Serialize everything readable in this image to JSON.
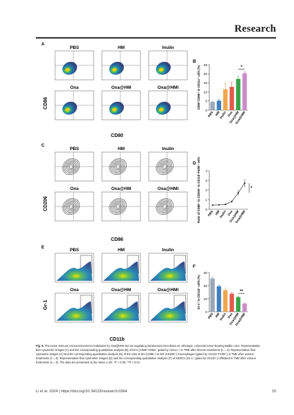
{
  "header": {
    "journal": "Research"
  },
  "figure": {
    "panel_letters": [
      "A",
      "B",
      "C",
      "D",
      "E",
      "F"
    ],
    "groups_top": [
      "PBS",
      "HM",
      "Inulin"
    ],
    "groups_bottom": [
      "Oxa",
      "Oxa@HM",
      "Oxa@HMI"
    ],
    "panelA": {
      "y_axis": "CD86",
      "x_axis": "CD80"
    },
    "panelC": {
      "y_axis": "CD206",
      "x_axis": "CD86"
    },
    "panelE": {
      "y_axis": "Gr-1",
      "x_axis": "CD11b"
    }
  },
  "chart_data": [
    {
      "panel": "B",
      "type": "bar",
      "categories": [
        "PBS",
        "HM",
        "Inulin",
        "Oxa",
        "Oxa@HM",
        "Oxa@HMI"
      ],
      "values": [
        4.5,
        5.2,
        11.5,
        12.8,
        17.2,
        20.3
      ],
      "errors": [
        0.5,
        0.6,
        3.2,
        2.5,
        1.3,
        0.8
      ],
      "colors": [
        "#9aa7b8",
        "#3d7fc1",
        "#f0a64a",
        "#e05a4c",
        "#3aa34a",
        "#c98cc9"
      ],
      "ylabel": "CD80⁺CD86⁺ in CD11c⁺ cells (%)",
      "ylim": [
        0,
        25
      ],
      "yticks": [
        "0",
        "5",
        "10",
        "15",
        "20",
        "25"
      ],
      "significance": "*"
    },
    {
      "panel": "D",
      "type": "line",
      "categories": [
        "PBS",
        "HM",
        "Inulin",
        "Oxa",
        "Oxa@HM",
        "Oxa@HMI"
      ],
      "values": [
        0.42,
        0.45,
        0.5,
        0.8,
        1.7,
        2.7
      ],
      "errors": [
        0.05,
        0.05,
        0.06,
        0.12,
        0.3,
        0.4
      ],
      "color": "#2a2a2a",
      "ylabel": "Ratio of CD86⁺ to CD206⁺ in CD11b⁺F4/80⁺ cells",
      "ylim": [
        0,
        4
      ],
      "yticks": [
        "0",
        "1",
        "2",
        "3",
        "4"
      ],
      "significance": "*"
    },
    {
      "panel": "F",
      "type": "bar",
      "categories": [
        "PBS",
        "HM",
        "Inulin",
        "Oxa",
        "Oxa@HM",
        "Oxa@HMI"
      ],
      "values": [
        25.5,
        19.5,
        16.5,
        13.8,
        11.2,
        6.3
      ],
      "errors": [
        1.2,
        1.0,
        1.5,
        1.0,
        0.8,
        0.6
      ],
      "colors": [
        "#9aa7b8",
        "#3d7fc1",
        "#f0a64a",
        "#e05a4c",
        "#3aa34a",
        "#c98cc9"
      ],
      "ylabel": "Gr-1⁺ in CD11b⁺ cells (%)",
      "ylim": [
        0,
        30
      ],
      "yticks": [
        "0",
        "10",
        "20",
        "30"
      ],
      "significance": "**"
    }
  ],
  "caption": {
    "label": "Fig. 9.",
    "text": "The tumor immune microenvironment modulation by Oxa@HMI Gel via regulating intratumoral microbiota on orthotopic colorectal tumor-bearing Balb/c mice. Representative flow cytometric images (A) and the corresponding quantitative analysis (B) of DCs (CD80⁺CD86⁺ gated by CD11c⁺) in TME after diverse treatments (n = 3). Representative flow cytometric images (C) and the corresponding quantitative analysis (D) of the ratio of M1 (CD86⁺) to M2 (CD206⁺) macrophages (gated by CD11b⁺F4/80⁺) in TME after various treatments (n = 3). Representative flow cytometric images (E) and the corresponding quantitative analysis (F) of MDSCs (Gr-1⁺ gated by CD11b⁺) infiltrated in TME after various treatments (n = 3). The data are presented as the mean ± SD. *P < 0.05, **P < 0.01."
  },
  "footer": {
    "citation": "Li et al. 2024 | https://doi.org/10.34133/research.0364",
    "page": "15"
  }
}
